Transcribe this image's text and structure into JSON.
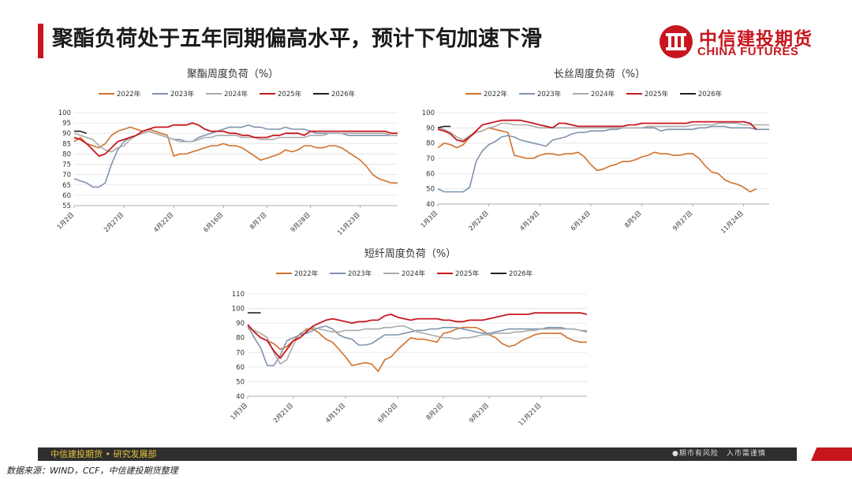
{
  "header": {
    "title": "聚酯负荷处于五年同期偏高水平，预计下旬加速下滑",
    "logo_cn": "中信建投期货",
    "logo_en": "CHINA FUTURES"
  },
  "footer": {
    "org": "中信建投期货 • 研究发展部",
    "risk": "●期市有风险　入市需谨慎",
    "source": "数据来源：WIND，CCF，中信建投期货整理"
  },
  "colors": {
    "2022年": "#d0702a",
    "2023年": "#7f93ad",
    "2024年": "#aaaaaa",
    "2025年": "#c8161e",
    "2026年": "#222222",
    "brand": "#c8161e"
  },
  "chart_data": [
    {
      "id": "polyester",
      "type": "line",
      "title": "聚酯周度负荷（%）",
      "ylim": [
        55,
        100
      ],
      "yticks": [
        55,
        60,
        65,
        70,
        75,
        80,
        85,
        90,
        95,
        100
      ],
      "xticks": [
        "1月2日",
        "2月27日",
        "4月22日",
        "6月16日",
        "8月7日",
        "9月28日",
        "11月23日"
      ],
      "xtick_weeks": [
        0,
        8,
        16,
        24,
        31,
        38,
        46
      ],
      "weeks": 53,
      "series": [
        {
          "name": "2022年",
          "values": [
            86,
            88,
            85,
            84,
            83,
            85,
            89,
            91,
            92,
            93,
            92,
            91,
            92,
            91,
            90,
            89,
            79,
            80,
            80,
            81,
            82,
            83,
            84,
            84,
            85,
            84,
            84,
            83,
            81,
            79,
            77,
            78,
            79,
            80,
            82,
            81,
            82,
            84,
            84,
            83,
            83,
            84,
            84,
            83,
            81,
            79,
            77,
            74,
            70,
            68,
            67,
            66,
            66
          ]
        },
        {
          "name": "2023年",
          "values": [
            68,
            67,
            66,
            64,
            64,
            66,
            75,
            82,
            86,
            88,
            89,
            90,
            91,
            90,
            89,
            88,
            87,
            87,
            86,
            86,
            88,
            89,
            90,
            91,
            92,
            93,
            93,
            93,
            94,
            93,
            93,
            92,
            92,
            92,
            93,
            92,
            92,
            92,
            91,
            90,
            90,
            90,
            90,
            90,
            89,
            89,
            89,
            89,
            89,
            89,
            89,
            89,
            89
          ]
        },
        {
          "name": "2024年",
          "values": [
            90,
            89,
            88,
            87,
            84,
            82,
            81,
            83,
            84,
            87,
            89,
            90,
            91,
            90,
            89,
            88,
            87,
            86,
            86,
            86,
            87,
            88,
            88,
            89,
            89,
            89,
            89,
            88,
            88,
            88,
            87,
            87,
            87,
            88,
            88,
            88,
            88,
            88,
            89,
            89,
            89,
            90,
            90,
            90,
            90,
            90,
            90,
            90,
            90,
            90,
            90,
            89,
            89
          ]
        },
        {
          "name": "2025年",
          "values": [
            88,
            87,
            85,
            82,
            79,
            80,
            83,
            86,
            87,
            88,
            89,
            91,
            92,
            93,
            93,
            93,
            94,
            94,
            94,
            95,
            94,
            92,
            91,
            91,
            91,
            90,
            90,
            89,
            89,
            88,
            88,
            88,
            89,
            89,
            90,
            90,
            90,
            89,
            91,
            91,
            91,
            91,
            91,
            91,
            91,
            91,
            91,
            91,
            91,
            91,
            91,
            90,
            90
          ]
        },
        {
          "name": "2026年",
          "values": [
            91,
            91,
            90
          ]
        }
      ]
    },
    {
      "id": "filament",
      "type": "line",
      "title": "长丝周度负荷（%）",
      "ylim": [
        40,
        100
      ],
      "yticks": [
        40,
        50,
        60,
        70,
        80,
        90,
        100
      ],
      "xticks": [
        "1月3日",
        "2月24日",
        "4月19日",
        "6月14日",
        "8月5日",
        "9月27日",
        "11月24日"
      ],
      "xtick_weeks": [
        0,
        8,
        16,
        24,
        32,
        40,
        48
      ],
      "weeks": 53,
      "series": [
        {
          "name": "2022年",
          "values": [
            77,
            80,
            79,
            77,
            79,
            84,
            87,
            88,
            90,
            89,
            88,
            87,
            72,
            71,
            70,
            70,
            72,
            73,
            73,
            72,
            73,
            73,
            74,
            71,
            66,
            62,
            63,
            65,
            66,
            68,
            68,
            69,
            71,
            72,
            74,
            73,
            73,
            72,
            72,
            73,
            73,
            70,
            65,
            61,
            60,
            56,
            54,
            53,
            51,
            48,
            50
          ]
        },
        {
          "name": "2023年",
          "values": [
            50,
            48,
            48,
            48,
            48,
            51,
            68,
            75,
            79,
            81,
            84,
            85,
            84,
            82,
            81,
            80,
            79,
            78,
            82,
            83,
            84,
            86,
            87,
            87,
            88,
            88,
            88,
            89,
            89,
            90,
            90,
            90,
            90,
            90,
            90,
            88,
            89,
            89,
            89,
            89,
            89,
            90,
            90,
            91,
            91,
            91,
            90,
            90,
            90,
            90,
            89,
            89,
            89
          ]
        },
        {
          "name": "2024年",
          "values": [
            90,
            89,
            87,
            84,
            82,
            85,
            87,
            88,
            90,
            91,
            93,
            93,
            92,
            92,
            92,
            91,
            90,
            90,
            90,
            90,
            90,
            90,
            90,
            90,
            90,
            90,
            90,
            90,
            90,
            90,
            90,
            90,
            90,
            91,
            91,
            91,
            91,
            91,
            91,
            91,
            92,
            92,
            92,
            92,
            93,
            93,
            93,
            93,
            92,
            92,
            92,
            92,
            92
          ]
        },
        {
          "name": "2025年",
          "values": [
            89,
            88,
            86,
            82,
            81,
            84,
            88,
            92,
            93,
            94,
            95,
            95,
            95,
            95,
            94,
            93,
            92,
            91,
            90,
            93,
            93,
            92,
            91,
            91,
            91,
            91,
            91,
            91,
            91,
            91,
            92,
            92,
            93,
            93,
            93,
            93,
            93,
            93,
            93,
            93,
            94,
            94,
            94,
            94,
            94,
            94,
            94,
            94,
            94,
            93,
            89
          ]
        },
        {
          "name": "2026年",
          "values": [
            90,
            91,
            91
          ]
        }
      ]
    },
    {
      "id": "staple",
      "type": "line",
      "title": "短纤周度负荷（%）",
      "ylim": [
        40,
        110
      ],
      "yticks": [
        40,
        50,
        60,
        70,
        80,
        90,
        100,
        110
      ],
      "xticks": [
        "1月3日",
        "2月21日",
        "4月15日",
        "6月10日",
        "8月2日",
        "9月23日",
        "11月21日"
      ],
      "xtick_weeks": [
        0,
        7,
        15,
        23,
        30,
        37,
        45
      ],
      "weeks": 53,
      "series": [
        {
          "name": "2022年",
          "values": [
            88,
            84,
            80,
            78,
            76,
            72,
            74,
            78,
            82,
            86,
            86,
            83,
            79,
            77,
            72,
            67,
            61,
            62,
            63,
            62,
            57,
            65,
            67,
            72,
            76,
            80,
            79,
            79,
            78,
            77,
            83,
            84,
            86,
            87,
            87,
            87,
            85,
            82,
            80,
            76,
            74,
            75,
            78,
            80,
            82,
            83,
            83,
            83,
            83,
            80,
            78,
            77,
            77
          ]
        },
        {
          "name": "2023年",
          "values": [
            88,
            80,
            73,
            61,
            61,
            68,
            78,
            80,
            82,
            83,
            85,
            87,
            88,
            86,
            82,
            80,
            79,
            75,
            75,
            76,
            79,
            82,
            82,
            82,
            83,
            84,
            85,
            85,
            86,
            86,
            87,
            87,
            87,
            86,
            85,
            84,
            83,
            83,
            84,
            85,
            86,
            86,
            86,
            86,
            86,
            86,
            87,
            87,
            87,
            86,
            86,
            85,
            84
          ]
        },
        {
          "name": "2024年",
          "values": [
            86,
            85,
            83,
            80,
            70,
            62,
            65,
            75,
            83,
            85,
            87,
            86,
            85,
            84,
            84,
            85,
            85,
            85,
            86,
            86,
            86,
            87,
            87,
            88,
            88,
            86,
            84,
            83,
            82,
            81,
            80,
            80,
            79,
            80,
            80,
            81,
            82,
            82,
            83,
            83,
            83,
            84,
            84,
            85,
            85,
            86,
            86,
            86,
            86,
            86,
            86,
            85,
            85
          ]
        },
        {
          "name": "2025年",
          "values": [
            89,
            84,
            80,
            78,
            71,
            66,
            72,
            78,
            80,
            84,
            88,
            90,
            92,
            93,
            92,
            91,
            90,
            91,
            91,
            92,
            92,
            95,
            96,
            94,
            93,
            92,
            93,
            93,
            93,
            93,
            92,
            92,
            91,
            91,
            92,
            92,
            92,
            93,
            94,
            95,
            96,
            96,
            96,
            96,
            97,
            97,
            97,
            97,
            97,
            97,
            97,
            97,
            96
          ]
        },
        {
          "name": "2026年",
          "values": [
            97,
            97,
            97
          ]
        }
      ]
    }
  ]
}
